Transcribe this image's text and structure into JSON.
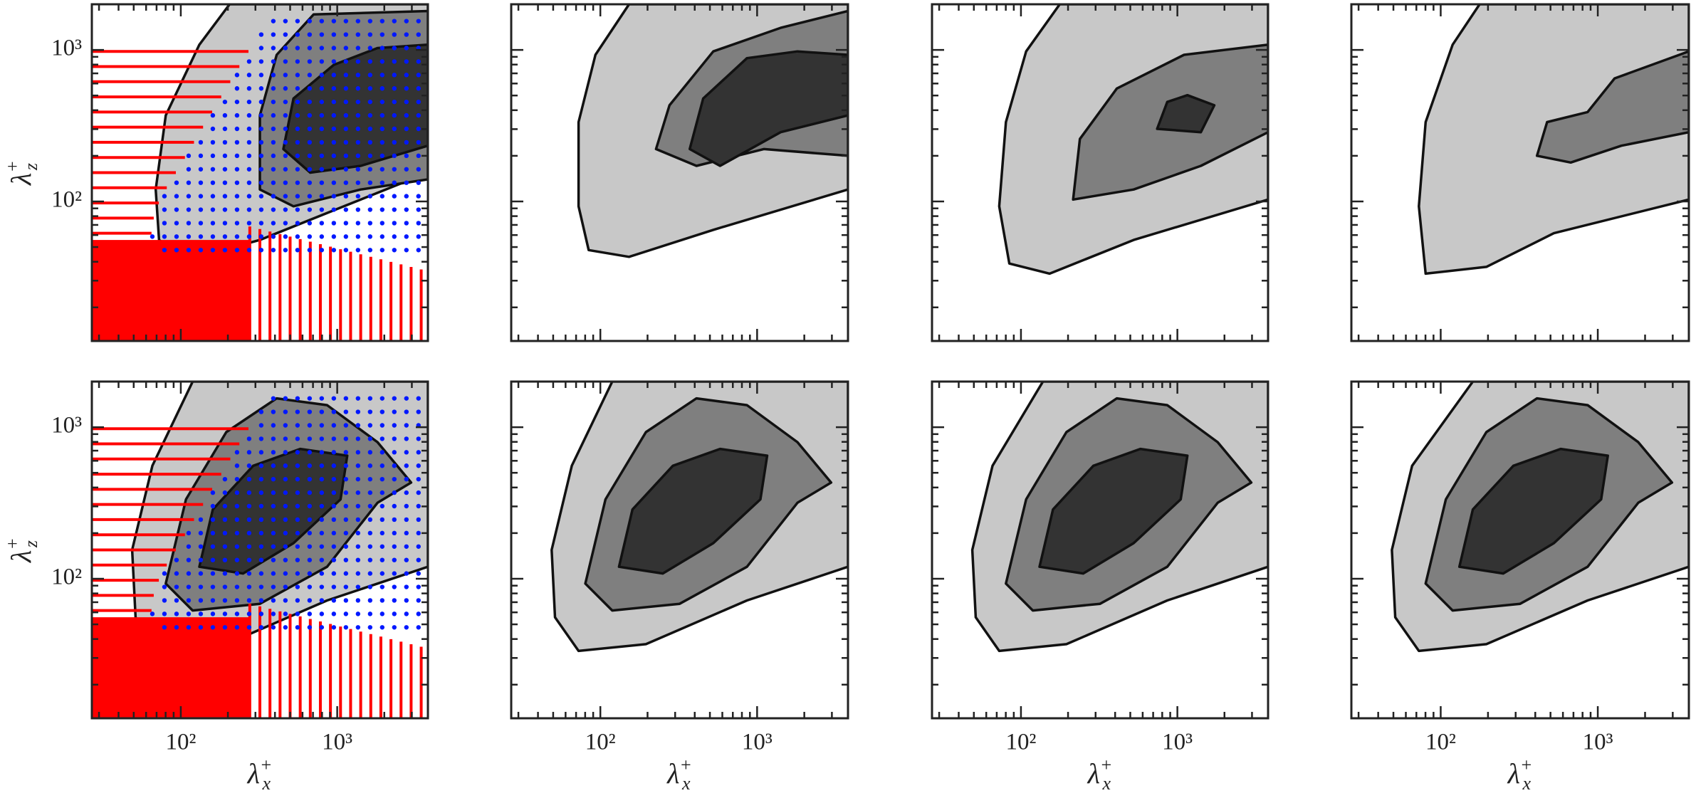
{
  "chart_data": [
    {
      "type": "contour",
      "xscale": "log",
      "yscale": "log",
      "xlim": [
        27,
        3800
      ],
      "ylim": [
        12,
        2000
      ],
      "xticks": [
        {
          "value": 100,
          "label": "10²"
        },
        {
          "value": 1000,
          "label": "10³"
        }
      ],
      "yticks": [
        {
          "value": 100,
          "label": "10²"
        },
        {
          "value": 1000,
          "label": "10³"
        }
      ],
      "xminorticks": [
        30,
        40,
        50,
        60,
        70,
        80,
        90,
        200,
        300,
        400,
        500,
        600,
        700,
        800,
        900,
        2000,
        3000
      ],
      "yminorticks": [
        20,
        30,
        40,
        50,
        60,
        70,
        80,
        90,
        200,
        300,
        400,
        500,
        600,
        700,
        800,
        900
      ],
      "xticklabels": false,
      "yticklabels": true,
      "ylabel": {
        "base": "λ",
        "sub": "z",
        "sup": "+"
      }
    },
    {
      "type": "contour",
      "xscale": "log",
      "yscale": "log",
      "xlim": [
        27,
        3800
      ],
      "ylim": [
        12,
        2000
      ],
      "xticks": [
        {
          "value": 100,
          "label": "10²"
        },
        {
          "value": 1000,
          "label": "10³"
        }
      ],
      "yticks": [
        {
          "value": 100,
          "label": "10²"
        },
        {
          "value": 1000,
          "label": "10³"
        }
      ],
      "xminorticks": [
        30,
        40,
        50,
        60,
        70,
        80,
        90,
        200,
        300,
        400,
        500,
        600,
        700,
        800,
        900,
        2000,
        3000
      ],
      "yminorticks": [
        20,
        30,
        40,
        50,
        60,
        70,
        80,
        90,
        200,
        300,
        400,
        500,
        600,
        700,
        800,
        900
      ],
      "xticklabels": false,
      "yticklabels": false
    },
    {
      "type": "contour",
      "xscale": "log",
      "yscale": "log",
      "xlim": [
        27,
        3800
      ],
      "ylim": [
        12,
        2000
      ],
      "xticks": [
        {
          "value": 100,
          "label": "10²"
        },
        {
          "value": 1000,
          "label": "10³"
        }
      ],
      "yticks": [
        {
          "value": 100,
          "label": "10²"
        },
        {
          "value": 1000,
          "label": "10³"
        }
      ],
      "xminorticks": [
        30,
        40,
        50,
        60,
        70,
        80,
        90,
        200,
        300,
        400,
        500,
        600,
        700,
        800,
        900,
        2000,
        3000
      ],
      "yminorticks": [
        20,
        30,
        40,
        50,
        60,
        70,
        80,
        90,
        200,
        300,
        400,
        500,
        600,
        700,
        800,
        900
      ],
      "xticklabels": false,
      "yticklabels": false
    },
    {
      "type": "contour",
      "xscale": "log",
      "yscale": "log",
      "xlim": [
        27,
        3800
      ],
      "ylim": [
        12,
        2000
      ],
      "xticks": [
        {
          "value": 100,
          "label": "10²"
        },
        {
          "value": 1000,
          "label": "10³"
        }
      ],
      "yticks": [
        {
          "value": 100,
          "label": "10²"
        },
        {
          "value": 1000,
          "label": "10³"
        }
      ],
      "xminorticks": [
        30,
        40,
        50,
        60,
        70,
        80,
        90,
        200,
        300,
        400,
        500,
        600,
        700,
        800,
        900,
        2000,
        3000
      ],
      "yminorticks": [
        20,
        30,
        40,
        50,
        60,
        70,
        80,
        90,
        200,
        300,
        400,
        500,
        600,
        700,
        800,
        900
      ],
      "xticklabels": false,
      "yticklabels": false
    },
    {
      "type": "contour",
      "xscale": "log",
      "yscale": "log",
      "xlim": [
        27,
        3800
      ],
      "ylim": [
        12,
        2000
      ],
      "xticks": [
        {
          "value": 100,
          "label": "10²"
        },
        {
          "value": 1000,
          "label": "10³"
        }
      ],
      "yticks": [
        {
          "value": 100,
          "label": "10²"
        },
        {
          "value": 1000,
          "label": "10³"
        }
      ],
      "xminorticks": [
        30,
        40,
        50,
        60,
        70,
        80,
        90,
        200,
        300,
        400,
        500,
        600,
        700,
        800,
        900,
        2000,
        3000
      ],
      "yminorticks": [
        20,
        30,
        40,
        50,
        60,
        70,
        80,
        90,
        200,
        300,
        400,
        500,
        600,
        700,
        800,
        900
      ],
      "xticklabels": true,
      "yticklabels": true,
      "xlabel": {
        "base": "λ",
        "sub": "x",
        "sup": "+"
      },
      "ylabel": {
        "base": "λ",
        "sub": "z",
        "sup": "+"
      }
    },
    {
      "type": "contour",
      "xscale": "log",
      "yscale": "log",
      "xlim": [
        27,
        3800
      ],
      "ylim": [
        12,
        2000
      ],
      "xticks": [
        {
          "value": 100,
          "label": "10²"
        },
        {
          "value": 1000,
          "label": "10³"
        }
      ],
      "yticks": [
        {
          "value": 100,
          "label": "10²"
        },
        {
          "value": 1000,
          "label": "10³"
        }
      ],
      "xminorticks": [
        30,
        40,
        50,
        60,
        70,
        80,
        90,
        200,
        300,
        400,
        500,
        600,
        700,
        800,
        900,
        2000,
        3000
      ],
      "yminorticks": [
        20,
        30,
        40,
        50,
        60,
        70,
        80,
        90,
        200,
        300,
        400,
        500,
        600,
        700,
        800,
        900
      ],
      "xticklabels": true,
      "yticklabels": false,
      "xlabel": {
        "base": "λ",
        "sub": "x",
        "sup": "+"
      }
    },
    {
      "type": "contour",
      "xscale": "log",
      "yscale": "log",
      "xlim": [
        27,
        3800
      ],
      "ylim": [
        12,
        2000
      ],
      "xticks": [
        {
          "value": 100,
          "label": "10²"
        },
        {
          "value": 1000,
          "label": "10³"
        }
      ],
      "yticks": [
        {
          "value": 100,
          "label": "10²"
        },
        {
          "value": 1000,
          "label": "10³"
        }
      ],
      "xminorticks": [
        30,
        40,
        50,
        60,
        70,
        80,
        90,
        200,
        300,
        400,
        500,
        600,
        700,
        800,
        900,
        2000,
        3000
      ],
      "yminorticks": [
        20,
        30,
        40,
        50,
        60,
        70,
        80,
        90,
        200,
        300,
        400,
        500,
        600,
        700,
        800,
        900
      ],
      "xticklabels": true,
      "yticklabels": false,
      "xlabel": {
        "base": "λ",
        "sub": "x",
        "sup": "+"
      }
    },
    {
      "type": "contour",
      "xscale": "log",
      "yscale": "log",
      "xlim": [
        27,
        3800
      ],
      "ylim": [
        12,
        2000
      ],
      "xticks": [
        {
          "value": 100,
          "label": "10²"
        },
        {
          "value": 1000,
          "label": "10³"
        }
      ],
      "yticks": [
        {
          "value": 100,
          "label": "10²"
        },
        {
          "value": 1000,
          "label": "10³"
        }
      ],
      "xminorticks": [
        30,
        40,
        50,
        60,
        70,
        80,
        90,
        200,
        300,
        400,
        500,
        600,
        700,
        800,
        900,
        2000,
        3000
      ],
      "yminorticks": [
        20,
        30,
        40,
        50,
        60,
        70,
        80,
        90,
        200,
        300,
        400,
        500,
        600,
        700,
        800,
        900
      ],
      "xticklabels": true,
      "yticklabels": false,
      "xlabel": {
        "base": "λ",
        "sub": "x",
        "sup": "+"
      }
    }
  ]
}
